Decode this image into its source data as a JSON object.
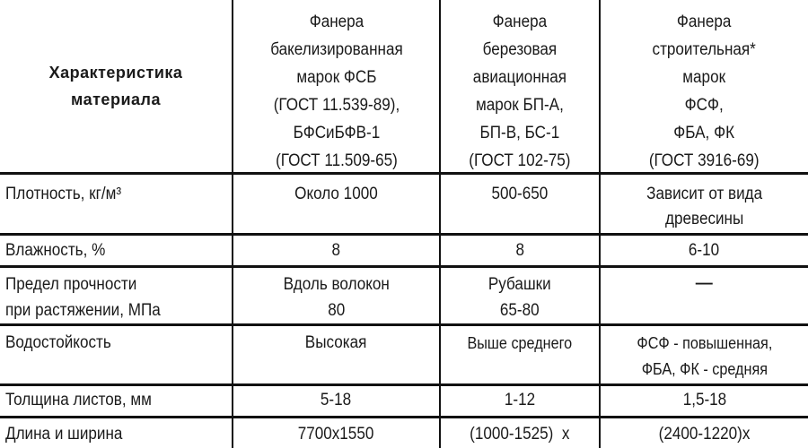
{
  "headers": [
    "Характеристика\nматериала",
    "Фанера\nбакелизированная\nмарок ФСБ\n(ГОСТ 11.539-89),\nБФСиБФВ-1\n(ГОСТ 11.509-65)",
    "Фанера\nберезовая\nавиационная\nмарок БП-А,\nБП-В, БС-1\n(ГОСТ 102-75)",
    "Фанера\nстроительная*\nмарок\nФСФ,\nФБА, ФК\n(ГОСТ 3916-69)"
  ],
  "rows": [
    [
      "Плотность, кг/м³",
      "Около  1000",
      "500-650",
      "Зависит от вида\nдревесины"
    ],
    [
      "Влажность, %",
      "8",
      "8",
      "6-10"
    ],
    [
      "Предел прочности\nпри растяжении, МПа",
      "Вдоль волокон\n80",
      "Рубашки\n65-80",
      "—"
    ],
    [
      "Водостойкость",
      "Высокая",
      "Выше среднего",
      "ФСФ - повышенная,\nФБА, ФК - средняя"
    ],
    [
      "Толщина листов, мм",
      "5-18",
      "1-12",
      "1,5-18"
    ],
    [
      "Длина и ширина",
      "7700x1550",
      "(1000-1525)  x",
      "(2400-1220)x"
    ]
  ]
}
